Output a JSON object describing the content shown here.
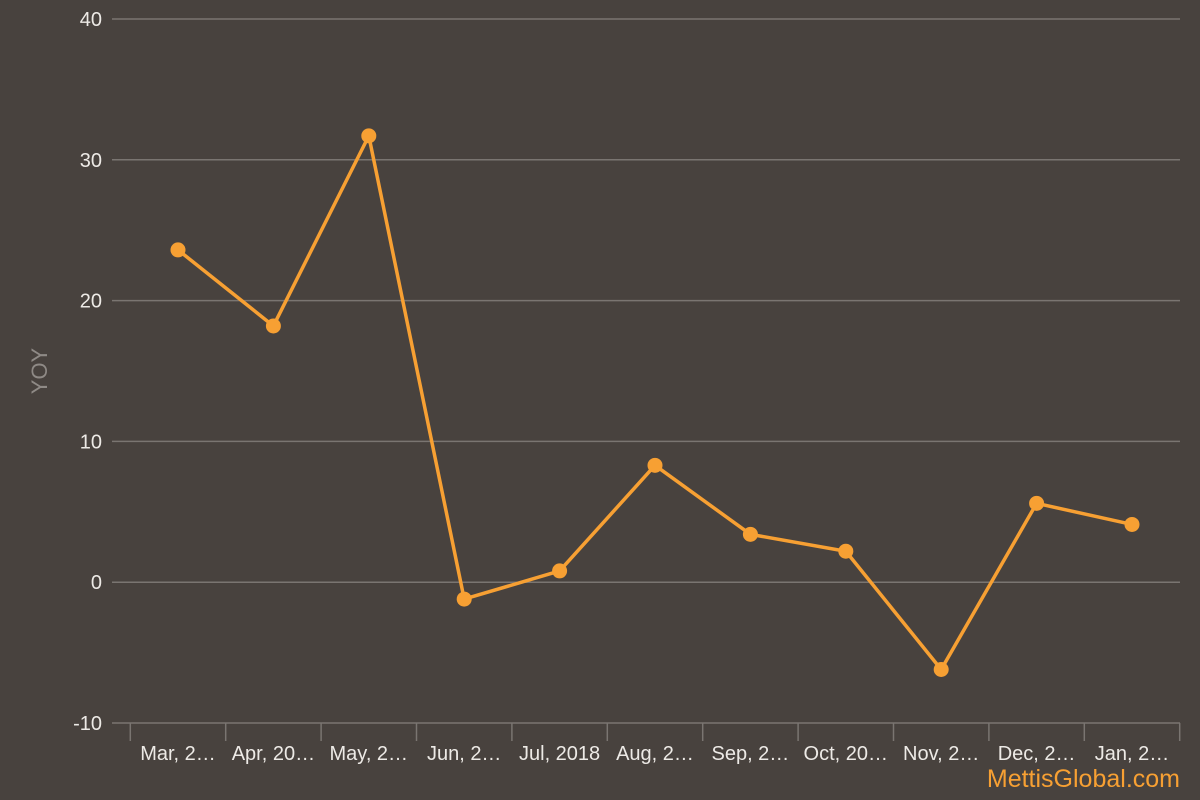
{
  "chart_data": {
    "type": "line",
    "title": "",
    "xlabel": "",
    "ylabel": "YOY",
    "categories": [
      "Mar, 2…",
      "Apr, 20…",
      "May, 2…",
      "Jun, 2…",
      "Jul, 2018",
      "Aug, 2…",
      "Sep, 2…",
      "Oct, 20…",
      "Nov, 2…",
      "Dec, 2…",
      "Jan, 2…"
    ],
    "series": [
      {
        "values": [
          23.6,
          18.2,
          31.7,
          -1.2,
          0.8,
          8.3,
          3.4,
          2.2,
          -6.2,
          5.6,
          4.1
        ],
        "color": "#F7A033"
      }
    ],
    "ylim": [
      -10,
      40
    ],
    "yticks": [
      "-10",
      "0",
      "10",
      "20",
      "30",
      "40"
    ],
    "grid": true,
    "legend": "none"
  },
  "watermark": "MettisGlobal.com",
  "colors": {
    "background": "#48423E",
    "line": "#F7A033",
    "grid": "#7A7571",
    "tick_text": "#EDEAE6",
    "axis_title": "#8F8A86"
  }
}
